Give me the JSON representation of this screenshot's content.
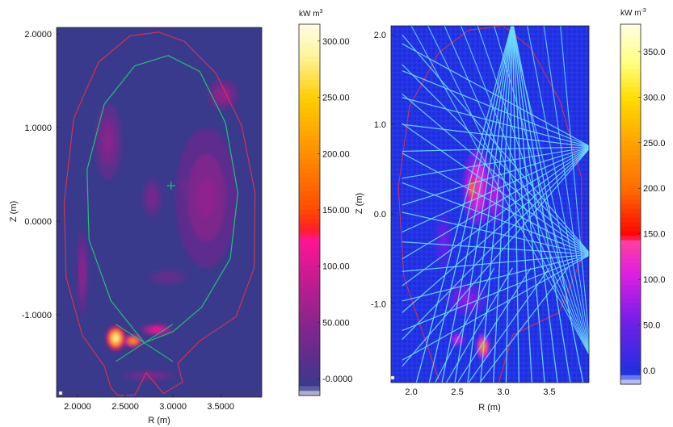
{
  "chart_data": [
    {
      "type": "heatmap",
      "title": "",
      "xlabel": "R (m)",
      "ylabel": "Z (m)",
      "xlim": [
        1.78,
        3.93
      ],
      "ylim": [
        -1.88,
        2.07
      ],
      "xticks": [
        "2.0000",
        "2.5000",
        "3.0000",
        "3.5000"
      ],
      "xtick_values": [
        2.0,
        2.5,
        3.0,
        3.5
      ],
      "yticks": [
        "2.0000",
        "1.0000",
        "0.0000",
        "-1.0000"
      ],
      "ytick_values": [
        2.0,
        1.0,
        0.0,
        -1.0
      ],
      "background_color": "#3a3a8c",
      "colorbar": {
        "unit": "kW m",
        "unit_superscript": "3",
        "range": [
          -15,
          315
        ],
        "labels": [
          "300.00",
          "250.00",
          "200.00",
          "150.00",
          "100.00",
          "50.000",
          "-0.0000"
        ],
        "label_values": [
          300,
          250,
          200,
          150,
          100,
          50,
          0
        ]
      },
      "magnetic_axis": {
        "R": 2.98,
        "Z": 0.38
      },
      "x_point": {
        "R": 2.7,
        "Z": -1.3
      },
      "blobs": [
        {
          "R": 2.4,
          "Z": -1.25,
          "rR": 0.1,
          "rZ": 0.13,
          "level": 290
        },
        {
          "R": 2.58,
          "Z": -1.28,
          "rR": 0.1,
          "rZ": 0.07,
          "level": 210
        },
        {
          "R": 2.83,
          "Z": -1.16,
          "rR": 0.16,
          "rZ": 0.06,
          "level": 120
        },
        {
          "R": 2.05,
          "Z": -0.55,
          "rR": 0.06,
          "rZ": 0.45,
          "level": 55
        },
        {
          "R": 3.35,
          "Z": 0.25,
          "rR": 0.32,
          "rZ": 0.75,
          "level": 55
        },
        {
          "R": 2.32,
          "Z": 0.85,
          "rR": 0.14,
          "rZ": 0.4,
          "level": 50
        },
        {
          "R": 3.52,
          "Z": 1.35,
          "rR": 0.16,
          "rZ": 0.16,
          "level": 60
        },
        {
          "R": 2.78,
          "Z": 0.25,
          "rR": 0.1,
          "rZ": 0.2,
          "level": 40
        },
        {
          "R": 3.12,
          "Z": 0.38,
          "rR": 0.05,
          "rZ": 0.12,
          "level": 40
        },
        {
          "R": 2.95,
          "Z": -0.6,
          "rR": 0.2,
          "rZ": 0.08,
          "level": 30
        },
        {
          "R": 2.75,
          "Z": -1.65,
          "rR": 0.28,
          "rZ": 0.05,
          "level": 45
        }
      ]
    },
    {
      "type": "heatmap",
      "title": "",
      "xlabel": "R (m)",
      "ylabel": "Z (m)",
      "xlim": [
        1.78,
        3.93
      ],
      "ylim": [
        -1.88,
        2.1
      ],
      "xticks": [
        "2.0",
        "2.5",
        "3.0",
        "3.5"
      ],
      "xtick_values": [
        2.0,
        2.5,
        3.0,
        3.5
      ],
      "yticks": [
        "2.0",
        "1.0",
        "0.0",
        "-1.0"
      ],
      "ytick_values": [
        2.0,
        1.0,
        0.0,
        -1.0
      ],
      "background_color": "#1f2fe0",
      "line_color": "#6fdcff",
      "colorbar": {
        "unit": "kW m",
        "unit_superscript": "-3",
        "range": [
          -15,
          380
        ],
        "labels": [
          "350.0",
          "300.0",
          "250.0",
          "200.0",
          "150.0",
          "100.0",
          "50.0",
          "0.0"
        ],
        "label_values": [
          350,
          300,
          250,
          200,
          150,
          100,
          50,
          0
        ]
      },
      "blobs": [
        {
          "R": 2.72,
          "Z": 0.3,
          "rR": 0.16,
          "rZ": 0.42,
          "level": 140
        },
        {
          "R": 2.66,
          "Z": 0.28,
          "rR": 0.06,
          "rZ": 0.22,
          "level": 210
        },
        {
          "R": 2.9,
          "Z": 0.2,
          "rR": 0.12,
          "rZ": 0.3,
          "level": 90
        },
        {
          "R": 2.78,
          "Z": -1.48,
          "rR": 0.07,
          "rZ": 0.14,
          "level": 240
        },
        {
          "R": 2.5,
          "Z": -1.4,
          "rR": 0.08,
          "rZ": 0.08,
          "level": 110
        },
        {
          "R": 2.6,
          "Z": -0.95,
          "rR": 0.22,
          "rZ": 0.18,
          "level": 70
        },
        {
          "R": 2.35,
          "Z": -0.3,
          "rR": 0.1,
          "rZ": 0.3,
          "level": 50
        }
      ]
    }
  ]
}
